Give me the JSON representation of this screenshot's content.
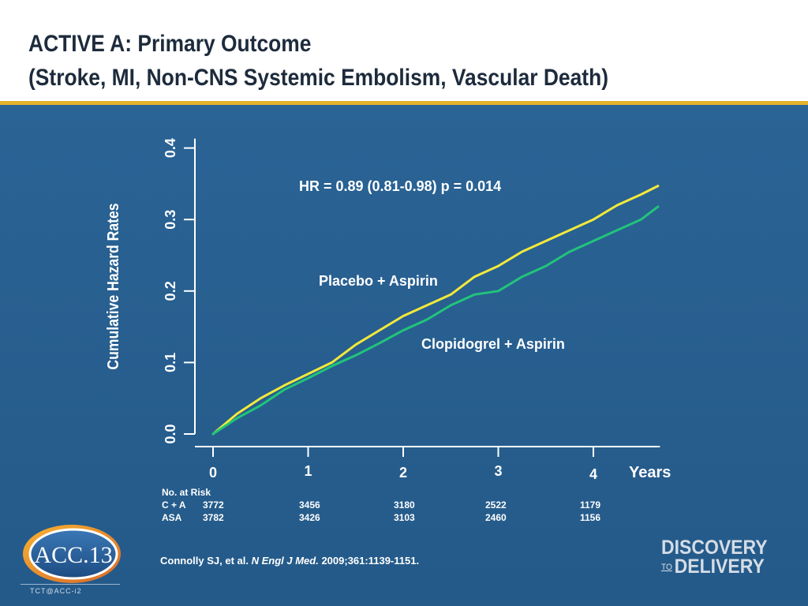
{
  "slide": {
    "title_line1": "ACTIVE A: Primary Outcome",
    "title_line2": "(Stroke, MI, Non-CNS Systemic Embolism, Vascular Death)",
    "accent_color": "#e4b22e",
    "background_color": "#275e8e"
  },
  "chart_data": {
    "type": "line",
    "title": "",
    "ylabel": "Cumulative Hazard Rates",
    "xlabel": "Years",
    "xlim": [
      0,
      4.7
    ],
    "ylim": [
      0,
      0.4
    ],
    "x_ticks": [
      "0",
      "1",
      "2",
      "3",
      "4"
    ],
    "y_ticks": [
      "0.0",
      "0.1",
      "0.2",
      "0.3",
      "0.4"
    ],
    "grid": false,
    "annotation": "HR = 0.89 (0.81-0.98) p = 0.014",
    "series": [
      {
        "name": "Placebo + Aspirin",
        "color": "#f2e93a",
        "x": [
          0,
          0.25,
          0.5,
          0.75,
          1.0,
          1.25,
          1.5,
          1.75,
          2.0,
          2.25,
          2.5,
          2.75,
          3.0,
          3.25,
          3.5,
          3.75,
          4.0,
          4.25,
          4.5,
          4.68
        ],
        "y": [
          0,
          0.028,
          0.05,
          0.068,
          0.084,
          0.1,
          0.125,
          0.145,
          0.165,
          0.18,
          0.195,
          0.22,
          0.235,
          0.255,
          0.27,
          0.285,
          0.3,
          0.32,
          0.335,
          0.347
        ]
      },
      {
        "name": "Clopidogrel + Aspirin",
        "color": "#22c47a",
        "x": [
          0,
          0.25,
          0.5,
          0.75,
          1.0,
          1.25,
          1.5,
          1.75,
          2.0,
          2.25,
          2.5,
          2.75,
          3.0,
          3.25,
          3.5,
          3.75,
          4.0,
          4.25,
          4.5,
          4.68
        ],
        "y": [
          0,
          0.022,
          0.04,
          0.062,
          0.078,
          0.095,
          0.11,
          0.127,
          0.145,
          0.16,
          0.18,
          0.195,
          0.2,
          0.22,
          0.235,
          0.255,
          0.27,
          0.285,
          0.3,
          0.318
        ]
      }
    ]
  },
  "risk_table": {
    "heading": "No. at Risk",
    "rows": [
      {
        "label": "C + A",
        "values": [
          "3772",
          "3456",
          "3180",
          "2522",
          "1179"
        ]
      },
      {
        "label": "ASA",
        "values": [
          "3782",
          "3426",
          "3103",
          "2460",
          "1156"
        ]
      }
    ]
  },
  "citation": {
    "authors": "Connolly SJ,  et al.",
    "journal": "N Engl J Med.",
    "details": "2009;361:1139-1151."
  },
  "logos": {
    "left_logo_text": "ACC.13",
    "left_logo_subtext": "TCT@ACC-i2",
    "right_logo_line1": "DISCOVERY",
    "right_logo_to": "TO",
    "right_logo_line2": "DELIVERY"
  }
}
